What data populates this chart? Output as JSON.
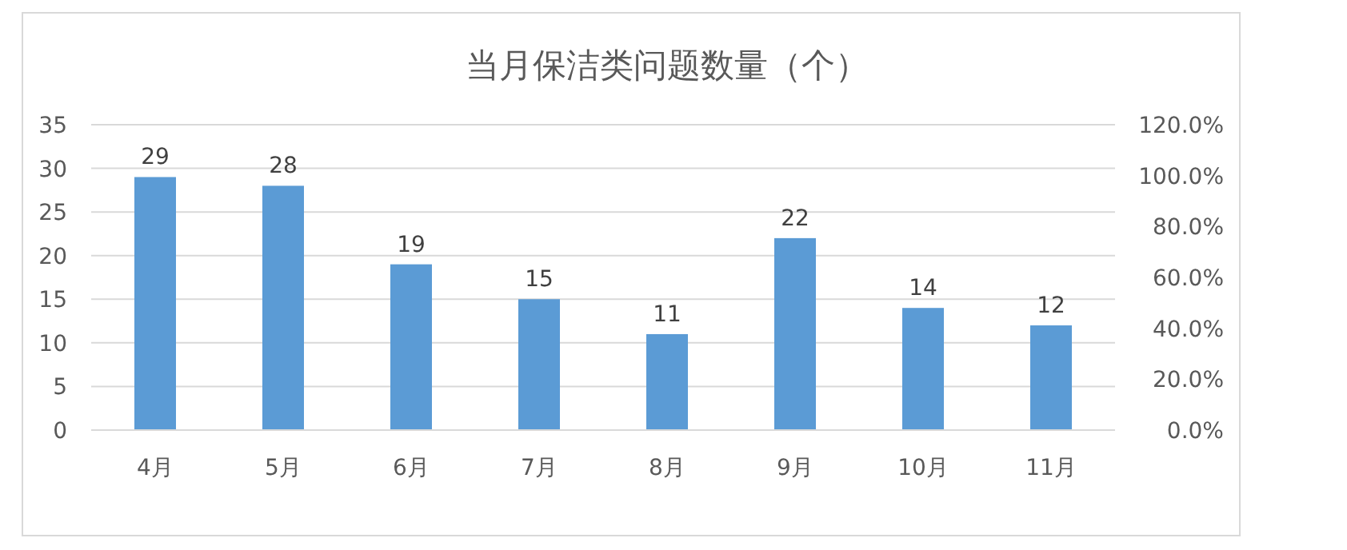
{
  "chart_data": {
    "type": "bar",
    "title": "当月保洁类问题数量（个）",
    "categories": [
      "4月",
      "5月",
      "6月",
      "7月",
      "8月",
      "9月",
      "10月",
      "11月"
    ],
    "values": [
      29,
      28,
      19,
      15,
      11,
      22,
      14,
      12
    ],
    "color": "#5b9bd5",
    "data_labels": true,
    "ylim": [
      0,
      35
    ],
    "yticks": [
      0,
      5,
      10,
      15,
      20,
      25,
      30,
      35
    ],
    "y2lim": [
      0,
      120
    ],
    "y2ticks": [
      {
        "value": 0,
        "label": "0.0%"
      },
      {
        "value": 20,
        "label": "20.0%"
      },
      {
        "value": 40,
        "label": "40.0%"
      },
      {
        "value": 60,
        "label": "60.0%"
      },
      {
        "value": 80,
        "label": "80.0%"
      },
      {
        "value": 100,
        "label": "100.0%"
      },
      {
        "value": 120,
        "label": "120.0%"
      }
    ],
    "grid": "y"
  }
}
